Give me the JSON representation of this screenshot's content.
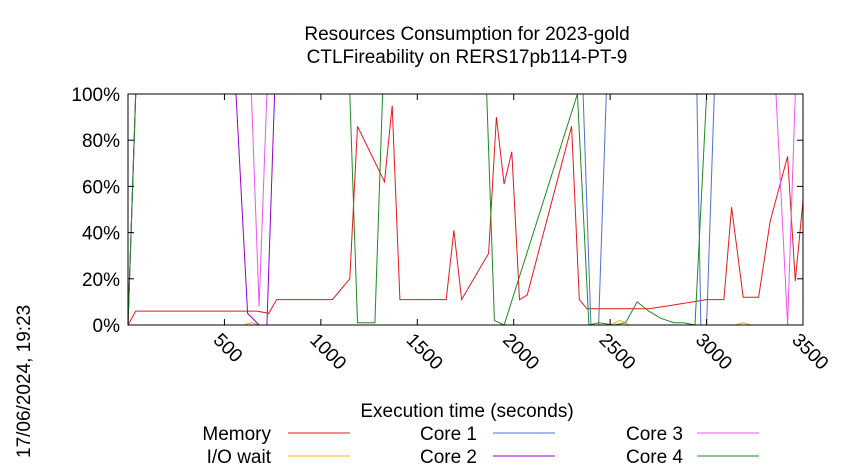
{
  "chart_data": {
    "type": "line",
    "title": "Resources Consumption for 2023-gold",
    "subtitle": "CTLFireability on RERS17pb114-PT-9",
    "xlabel": "Execution time (seconds)",
    "ylabel": "",
    "xlim": [
      0,
      3500
    ],
    "ylim": [
      0,
      100
    ],
    "x_ticks": [
      500,
      1000,
      1500,
      2000,
      2500,
      3000,
      3500
    ],
    "x_tick_labels": [
      "500",
      "1000",
      "1500",
      "2000",
      "2500",
      "3000",
      "3500"
    ],
    "y_ticks": [
      0,
      20,
      40,
      60,
      80,
      100
    ],
    "y_tick_labels": [
      "0%",
      "20%",
      "40%",
      "60%",
      "80%",
      "100%"
    ],
    "grid": false,
    "legend_position": "bottom",
    "timestamp": "17/06/2024, 19:23",
    "series": [
      {
        "name": "Memory",
        "color": "#e41a1c",
        "x": [
          0,
          40,
          100,
          500,
          670,
          730,
          770,
          1000,
          1060,
          1150,
          1190,
          1330,
          1370,
          1410,
          1650,
          1690,
          1730,
          1870,
          1910,
          1950,
          1990,
          2030,
          2070,
          2300,
          2340,
          2380,
          2700,
          2780,
          3000,
          3090,
          3130,
          3190,
          3230,
          3270,
          3330,
          3420,
          3460,
          3500
        ],
        "values": [
          0,
          6,
          6,
          6,
          6,
          5,
          11,
          11,
          11,
          20,
          86,
          62,
          95,
          11,
          11,
          41,
          11,
          31,
          90,
          61,
          75,
          11,
          13,
          86,
          11,
          7,
          7,
          8,
          11,
          11,
          51,
          12,
          12,
          12,
          45,
          73,
          19,
          54
        ]
      },
      {
        "name": "I/O wait",
        "color": "#ffb000",
        "x": [
          0,
          600,
          640,
          680,
          2500,
          2550,
          2600,
          3150,
          3190,
          3230,
          3500
        ],
        "values": [
          0,
          0,
          1,
          0,
          0,
          2,
          0,
          0,
          1,
          0,
          0
        ]
      },
      {
        "name": "Core 1",
        "color": "#4f6fd0",
        "x": [
          0,
          40,
          2360,
          2400,
          2440,
          2480,
          2950,
          2970,
          3000,
          3040,
          3500
        ],
        "values": [
          0,
          100,
          100,
          0,
          0,
          100,
          100,
          0,
          0,
          100,
          100
        ]
      },
      {
        "name": "Core 2",
        "color": "#9400d3",
        "x": [
          0,
          40,
          560,
          620,
          680,
          720,
          760,
          3500
        ],
        "values": [
          0,
          100,
          100,
          5,
          0,
          0,
          100,
          100
        ]
      },
      {
        "name": "Core 3",
        "color": "#ee55ee",
        "x": [
          0,
          40,
          640,
          680,
          720,
          3360,
          3420,
          3460,
          3500
        ],
        "values": [
          0,
          100,
          100,
          8,
          100,
          100,
          0,
          100,
          100
        ]
      },
      {
        "name": "Core 4",
        "color": "#1e8b1e",
        "x": [
          0,
          40,
          1150,
          1190,
          1280,
          1320,
          1860,
          1900,
          1950,
          2330,
          2390,
          2440,
          2520,
          2580,
          2640,
          2700,
          2760,
          2830,
          2880,
          2940,
          3000,
          3500
        ],
        "values": [
          0,
          100,
          100,
          1,
          1,
          100,
          100,
          2,
          0,
          100,
          0,
          1,
          0,
          1,
          10,
          6,
          3,
          1,
          1,
          0,
          100,
          100
        ]
      }
    ]
  }
}
